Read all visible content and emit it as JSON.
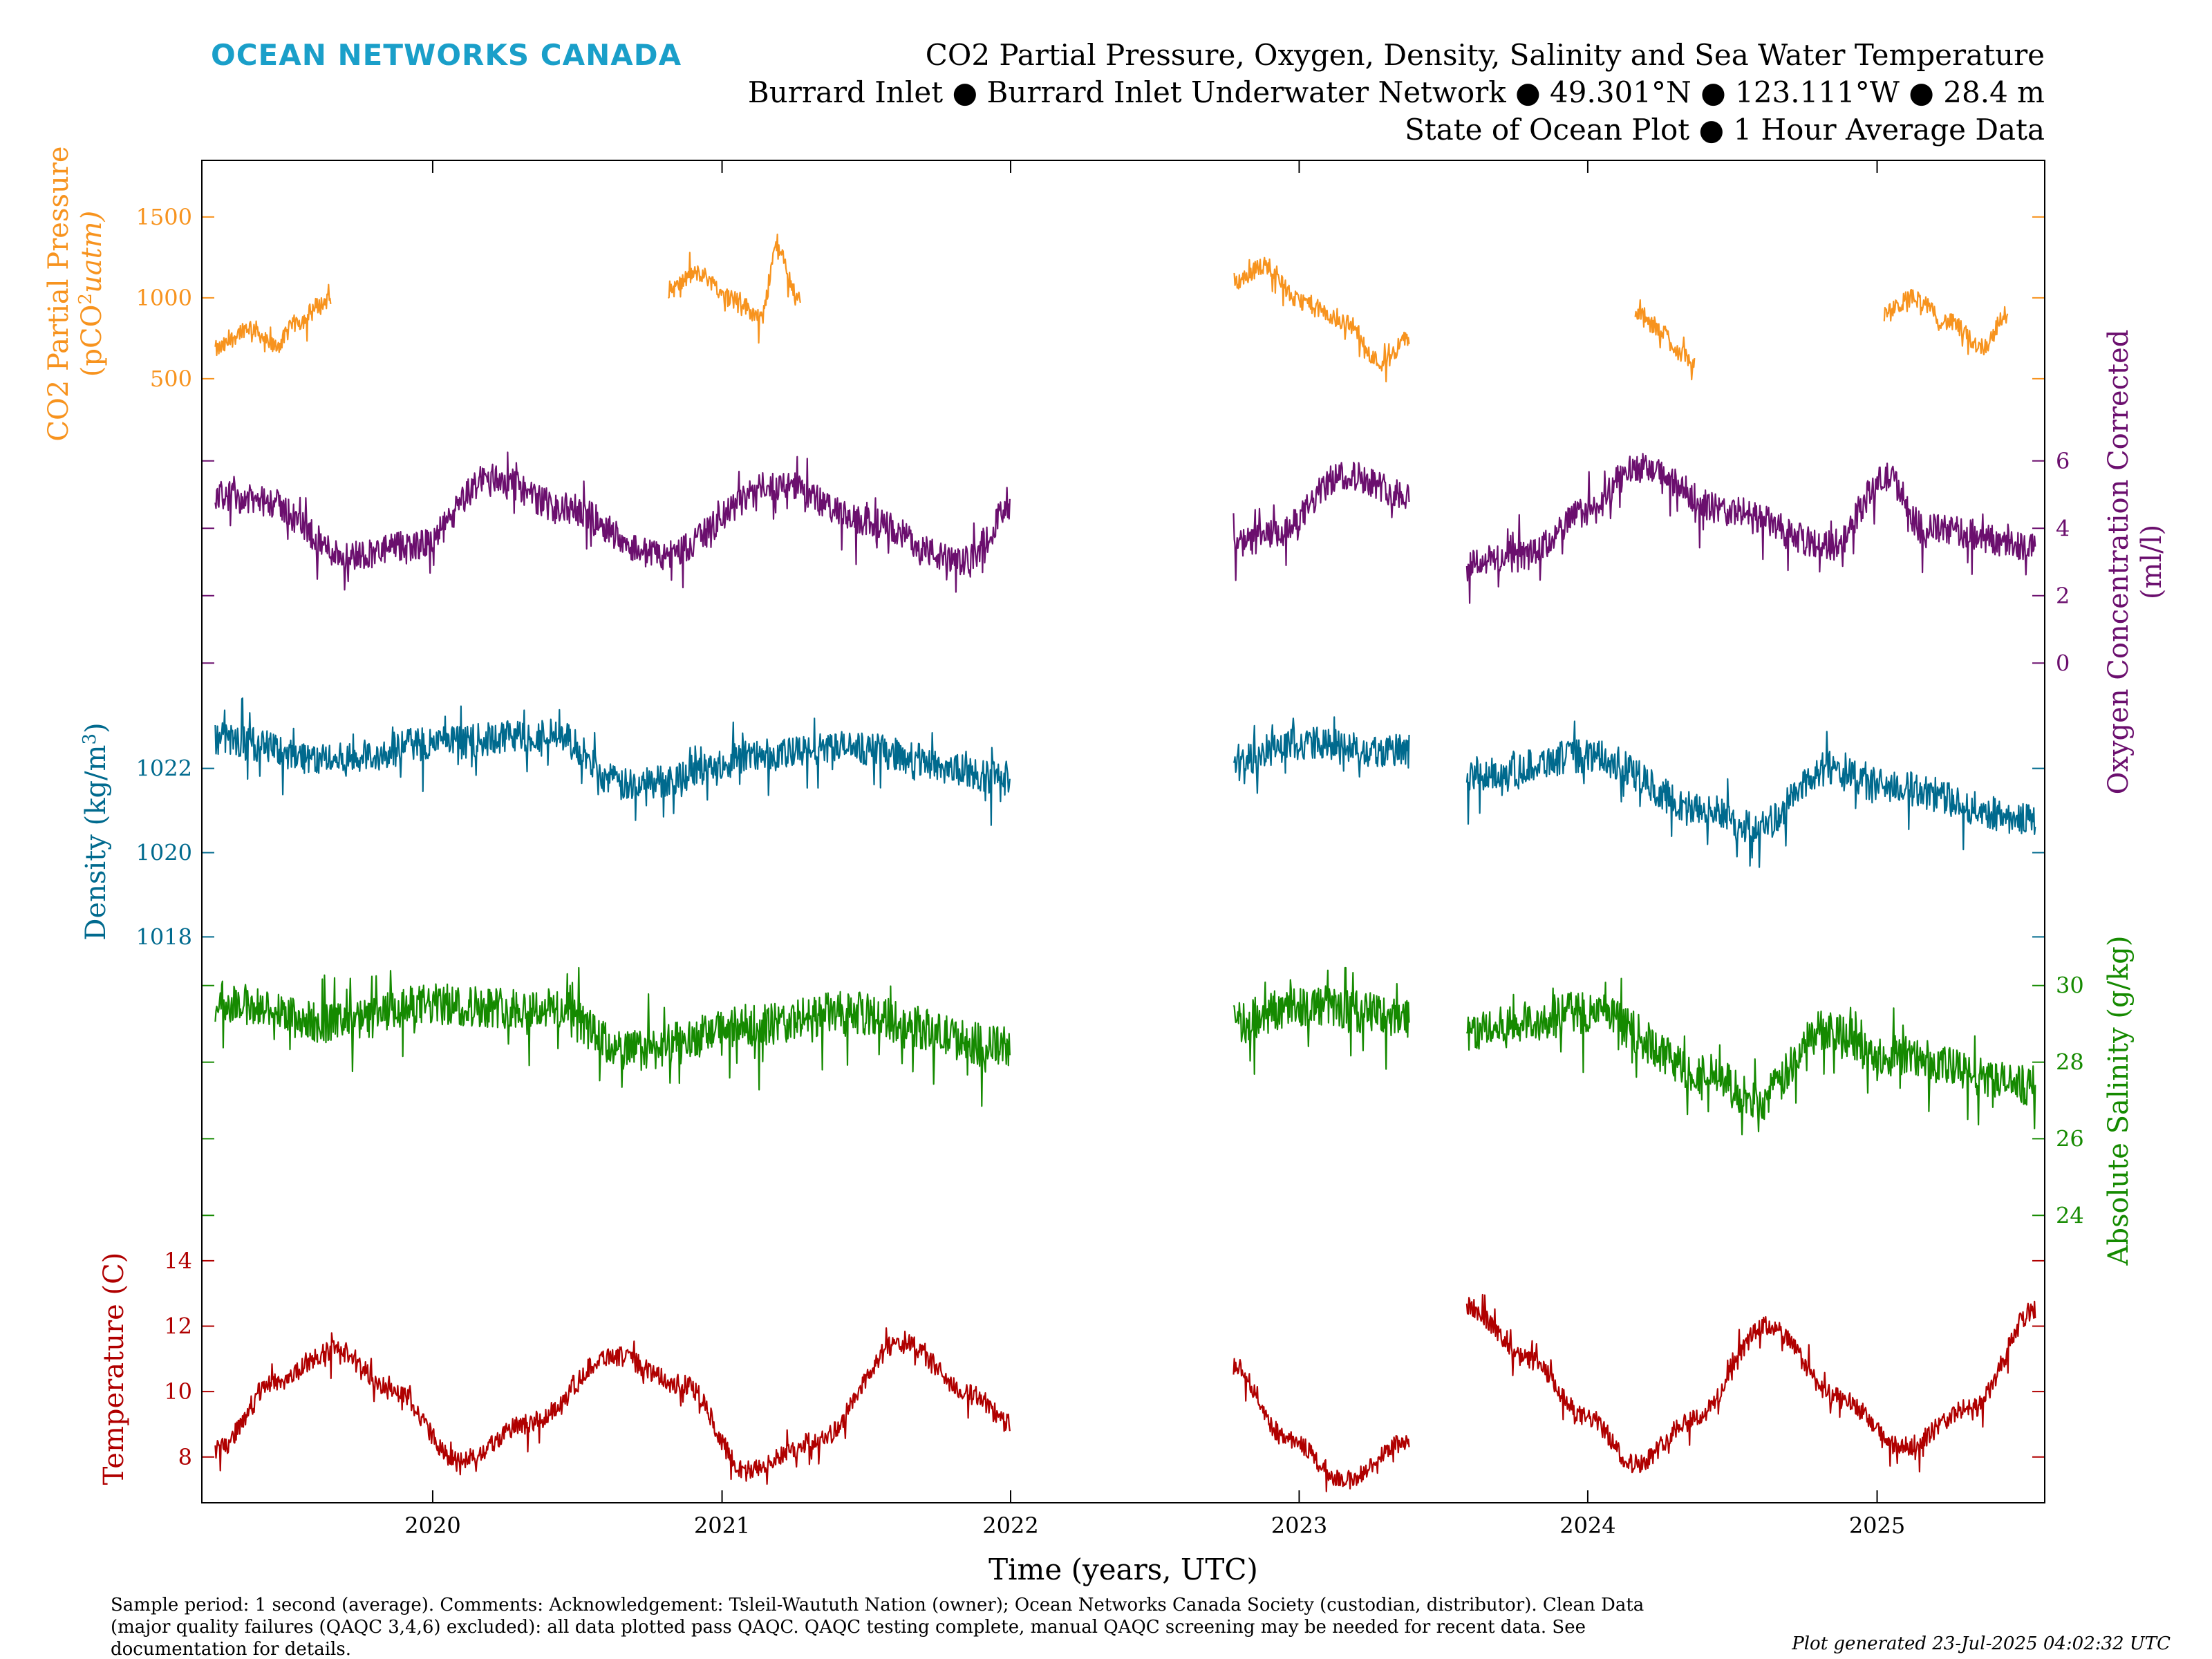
{
  "header": {
    "brand": "OCEAN NETWORKS CANADA",
    "title_line1": "CO2 Partial Pressure, Oxygen, Density, Salinity and Sea Water Temperature",
    "title_line2": "Burrard Inlet ● Burrard Inlet Underwater Network ● 49.301°N ● 123.111°W ● 28.4 m",
    "title_line3": "State of Ocean Plot ● 1 Hour Average Data"
  },
  "footer": {
    "line1": "Sample period: 1 second (average). Comments: Acknowledgement: Tsleil-Waututh Nation (owner); Ocean Networks Canada Society (custodian, distributor). Clean Data",
    "line2": "(major quality failures (QAQC 3,4,6) excluded): all data plotted pass QAQC. QAQC testing complete, manual QAQC screening may be needed for recent data. See",
    "line3": "documentation for details.",
    "generated": "Plot generated 23-Jul-2025 04:02:32 UTC"
  },
  "chart_data": {
    "type": "line",
    "xlabel": "Time (years, UTC)",
    "x_range": [
      "2019-03-15",
      "2025-08-01"
    ],
    "x_ticks": [
      "2020",
      "2021",
      "2022",
      "2023",
      "2024",
      "2025"
    ],
    "series": [
      {
        "name": "CO2 Partial Pressure",
        "ylabel_line1": "CO2 Partial Pressure",
        "ylabel_line2_pre": "(pCO",
        "ylabel_line2_sup": "2",
        "ylabel_line2_post": "uatm)",
        "color": "#f7931e",
        "side": "left",
        "ylim": [
          200,
          1850
        ],
        "yticks": [
          500,
          1000,
          1500
        ],
        "noise": 55,
        "segments": [
          {
            "t": [
              "2019-04-01",
              "2019-05-15",
              "2019-06-15",
              "2019-07-15",
              "2019-08-10",
              "2019-08-25"
            ],
            "v": [
              680,
              820,
              700,
              850,
              950,
              1000
            ]
          },
          {
            "t": [
              "2020-10-25",
              "2020-12-01",
              "2021-01-15",
              "2021-02-20",
              "2021-03-10",
              "2021-04-10"
            ],
            "v": [
              1050,
              1150,
              1000,
              880,
              1300,
              1000
            ]
          },
          {
            "t": [
              "2022-10-10",
              "2022-11-20",
              "2023-01-01",
              "2023-03-01",
              "2023-04-15",
              "2023-05-20"
            ],
            "v": [
              1100,
              1200,
              980,
              850,
              600,
              750
            ]
          },
          {
            "t": [
              "2024-03-01",
              "2024-04-01",
              "2024-05-01",
              "2024-05-15"
            ],
            "v": [
              900,
              800,
              650,
              580
            ]
          },
          {
            "t": [
              "2025-01-10",
              "2025-02-15",
              "2025-04-01",
              "2025-05-15",
              "2025-06-15"
            ],
            "v": [
              900,
              1000,
              850,
              700,
              900
            ]
          }
        ]
      },
      {
        "name": "Oxygen Concentration Corrected",
        "ylabel_line1": "Oxygen Concentration Corrected",
        "ylabel_line2": "(ml/l)",
        "color": "#6b0f6e",
        "side": "right",
        "ylim": [
          -1,
          7
        ],
        "yticks": [
          0,
          2,
          4,
          6
        ],
        "noise": 0.45,
        "segments": [
          {
            "t": [
              "2019-04-01",
              "2019-06-01",
              "2019-09-15",
              "2019-12-15",
              "2020-03-15",
              "2020-06-15",
              "2020-10-15",
              "2021-03-15",
              "2021-07-01",
              "2021-11-01",
              "2021-12-31"
            ],
            "v": [
              5.0,
              4.8,
              3.2,
              3.5,
              5.5,
              4.6,
              3.2,
              5.3,
              4.2,
              3.0,
              4.5
            ]
          },
          {
            "t": [
              "2022-10-10",
              "2022-12-01",
              "2023-03-01",
              "2023-05-20"
            ],
            "v": [
              3.5,
              3.8,
              5.6,
              5.0
            ]
          },
          {
            "t": [
              "2023-08-01",
              "2023-10-15",
              "2024-01-01",
              "2024-03-01",
              "2024-07-01",
              "2024-11-01",
              "2025-01-15",
              "2025-03-01",
              "2025-07-20"
            ],
            "v": [
              3.0,
              3.2,
              4.5,
              5.8,
              4.5,
              3.5,
              5.5,
              4.0,
              3.5
            ]
          }
        ]
      },
      {
        "name": "Density",
        "ylabel_pre": "Density (kg/m",
        "ylabel_sup": "3",
        "ylabel_post": ")",
        "color": "#006a8e",
        "side": "left",
        "ylim": [
          1017.3,
          1023.7
        ],
        "yticks": [
          1018,
          1020,
          1022
        ],
        "noise": 0.4,
        "segments": [
          {
            "t": [
              "2019-04-01",
              "2019-09-01",
              "2020-01-01",
              "2020-06-01",
              "2020-09-01",
              "2021-03-01",
              "2021-06-01",
              "2021-12-31"
            ],
            "v": [
              1022.7,
              1022.2,
              1022.6,
              1022.8,
              1021.6,
              1022.3,
              1022.5,
              1021.8
            ]
          },
          {
            "t": [
              "2022-10-10",
              "2023-01-01",
              "2023-05-20"
            ],
            "v": [
              1022.2,
              1022.6,
              1022.4
            ]
          },
          {
            "t": [
              "2023-08-01",
              "2024-01-01",
              "2024-06-01",
              "2024-08-01",
              "2024-11-01",
              "2025-01-01",
              "2025-07-20"
            ],
            "v": [
              1021.8,
              1022.3,
              1021.0,
              1020.6,
              1022.0,
              1021.6,
              1020.8
            ]
          }
        ]
      },
      {
        "name": "Absolute Salinity",
        "ylabel": "Absolute Salinity (g/kg)",
        "color": "#158a00",
        "side": "right",
        "ylim": [
          23.5,
          30.5
        ],
        "yticks": [
          24,
          26,
          28,
          30
        ],
        "noise": 0.55,
        "segments": [
          {
            "t": [
              "2019-04-01",
              "2019-09-01",
              "2020-01-01",
              "2020-06-01",
              "2020-09-01",
              "2021-03-01",
              "2021-06-01",
              "2021-12-31"
            ],
            "v": [
              29.6,
              29.0,
              29.5,
              29.4,
              28.3,
              29.0,
              29.3,
              28.4
            ]
          },
          {
            "t": [
              "2022-10-10",
              "2023-01-01",
              "2023-05-20"
            ],
            "v": [
              29.0,
              29.5,
              29.2
            ]
          },
          {
            "t": [
              "2023-08-01",
              "2024-01-01",
              "2024-06-01",
              "2024-08-01",
              "2024-11-01",
              "2025-01-01",
              "2025-07-20"
            ],
            "v": [
              28.8,
              29.3,
              27.7,
              27.0,
              28.9,
              28.2,
              27.4
            ]
          }
        ]
      },
      {
        "name": "Temperature",
        "ylabel": "Temperature (C)",
        "color": "#b00000",
        "side": "left",
        "ylim": [
          6.6,
          14.8
        ],
        "yticks": [
          8,
          10,
          12,
          14
        ],
        "noise": 0.3,
        "segments": [
          {
            "t": [
              "2019-04-01",
              "2019-06-15",
              "2019-09-01",
              "2019-11-15",
              "2020-02-01",
              "2020-05-01",
              "2020-08-15",
              "2020-11-15",
              "2021-02-01",
              "2021-05-01",
              "2021-08-15",
              "2021-11-15",
              "2021-12-31"
            ],
            "v": [
              8.2,
              10.3,
              11.3,
              10.0,
              7.9,
              9.0,
              11.1,
              10.2,
              7.6,
              8.5,
              11.5,
              9.9,
              9.0
            ]
          },
          {
            "t": [
              "2022-10-10",
              "2022-12-15",
              "2023-03-01",
              "2023-05-20"
            ],
            "v": [
              10.8,
              8.6,
              7.3,
              8.5
            ]
          },
          {
            "t": [
              "2023-08-01",
              "2023-10-15",
              "2024-01-01",
              "2024-03-01",
              "2024-05-15",
              "2024-08-15",
              "2024-11-15",
              "2025-02-01",
              "2025-05-01",
              "2025-07-20"
            ],
            "v": [
              12.6,
              11.0,
              9.2,
              7.8,
              9.2,
              12.0,
              9.8,
              8.3,
              9.5,
              12.5
            ]
          }
        ]
      }
    ]
  }
}
